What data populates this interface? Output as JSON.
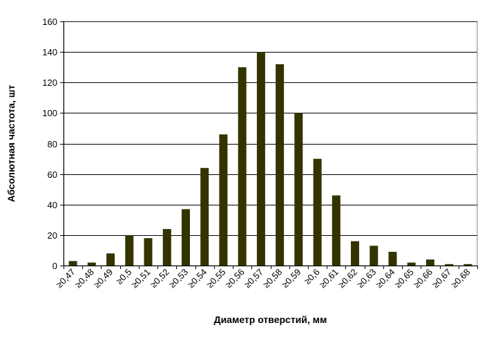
{
  "chart_data": {
    "type": "bar",
    "title": "",
    "xlabel": "Диаметр отверстий, мм",
    "ylabel": "Абсолютная частота, шт",
    "ylim": [
      0,
      160
    ],
    "yticks": [
      0,
      20,
      40,
      60,
      80,
      100,
      120,
      140,
      160
    ],
    "grid": true,
    "categories": [
      "≥0,47",
      "≥0,48",
      "≥0,49",
      "≥0,5",
      "≥0,51",
      "≥0,52",
      "≥0,53",
      "≥0,54",
      "≥0,55",
      "≥0,56",
      "≥0,57",
      "≥0,58",
      "≥0,59",
      "≥0,6",
      "≥0,61",
      "≥0,62",
      "≥0,63",
      "≥0,64",
      "≥0,65",
      "≥0,66",
      "≥0,67",
      "≥0,68"
    ],
    "values": [
      3,
      2,
      8,
      20,
      18,
      24,
      37,
      64,
      86,
      130,
      140,
      132,
      100,
      70,
      46,
      16,
      13,
      9,
      2,
      4,
      1,
      1
    ],
    "colors": {
      "bar": "#333300",
      "grid": "#000000",
      "plot_border": "#808080"
    }
  }
}
